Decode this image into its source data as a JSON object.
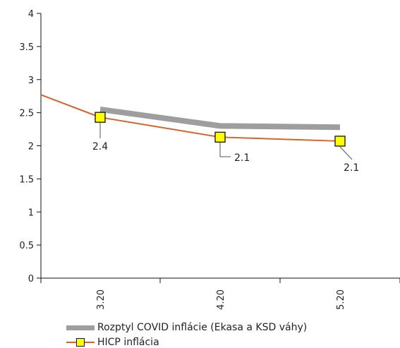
{
  "chart_data": {
    "type": "line",
    "categories": [
      "3.20",
      "4.20",
      "5.20"
    ],
    "ylim": [
      0,
      4
    ],
    "yticks": [
      "0",
      "0.5",
      "1",
      "1.5",
      "2",
      "2.5",
      "3",
      "3.5",
      "4"
    ],
    "grid": false,
    "legend_position": "bottom",
    "series": [
      {
        "name": "Rozptyl COVID inflácie (Ekasa a KSD váhy)",
        "style": "band",
        "color": "#9e9e9e",
        "values": [
          2.55,
          2.3,
          2.28
        ]
      },
      {
        "name": "HICP inflácia",
        "style": "line-marker",
        "color": "#d9622b",
        "marker_color": "#ffff00",
        "start_value": 2.77,
        "values": [
          2.43,
          2.13,
          2.07
        ],
        "data_labels": [
          "2.4",
          "2.1",
          "2.1"
        ]
      }
    ]
  }
}
